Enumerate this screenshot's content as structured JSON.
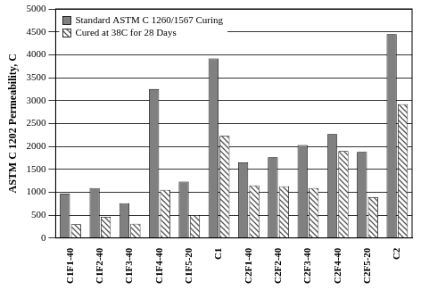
{
  "chart_data": {
    "type": "bar",
    "y_label": "ASTM C 1202 Permeability, C",
    "categories": [
      "C1F1-40",
      "C1F2-40",
      "C1F3-40",
      "C1F4-40",
      "C1F5-20",
      "C1",
      "C2F1-40",
      "C2F2-40",
      "C2F3-40",
      "C2F4-40",
      "C2F5-20",
      "C2"
    ],
    "series": [
      {
        "name": "Standard ASTM C 1260/1567 Curing",
        "color": "#808080",
        "values": [
          970,
          1090,
          760,
          3250,
          1230,
          3920,
          1650,
          1760,
          2030,
          2270,
          1880,
          4450
        ]
      },
      {
        "name": "Cured at 38C for 28 Days",
        "color": "#555555",
        "values": [
          300,
          460,
          310,
          1050,
          500,
          2230,
          1150,
          1130,
          1090,
          1900,
          890,
          2920
        ]
      }
    ],
    "ylim": [
      0,
      5000
    ],
    "yticks": [
      0,
      500,
      1000,
      1500,
      2000,
      2500,
      3000,
      3500,
      4000,
      4500,
      5000
    ],
    "grid": true,
    "legend": "upper left"
  }
}
